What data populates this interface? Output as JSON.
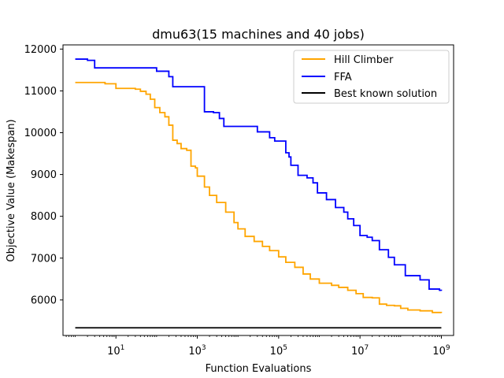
{
  "chart_data": {
    "type": "line",
    "title": "dmu63(15 machines and 40 jobs)",
    "xlabel": "Function Evaluations",
    "ylabel": "Objective Value (Makespan)",
    "xscale": "log",
    "xlim": [
      0.5,
      2000000000
    ],
    "ylim": [
      5150,
      12100
    ],
    "xticks": [
      {
        "value": 10,
        "base": "10",
        "exp": "1"
      },
      {
        "value": 1000,
        "base": "10",
        "exp": "3"
      },
      {
        "value": 100000,
        "base": "10",
        "exp": "5"
      },
      {
        "value": 10000000,
        "base": "10",
        "exp": "7"
      },
      {
        "value": 1000000000,
        "base": "10",
        "exp": "9"
      }
    ],
    "yticks": [
      {
        "value": 6000,
        "label": "6000"
      },
      {
        "value": 7000,
        "label": "7000"
      },
      {
        "value": 8000,
        "label": "8000"
      },
      {
        "value": 9000,
        "label": "9000"
      },
      {
        "value": 10000,
        "label": "10000"
      },
      {
        "value": 11000,
        "label": "11000"
      },
      {
        "value": 12000,
        "label": "12000"
      }
    ],
    "grid": false,
    "legend_position": "top-right",
    "series": [
      {
        "name": "Hill Climber",
        "color": "#ffa500",
        "step": true,
        "points": [
          [
            1,
            11200
          ],
          [
            5.4,
            11170
          ],
          [
            10,
            11060
          ],
          [
            30,
            11040
          ],
          [
            40,
            10990
          ],
          [
            55,
            10920
          ],
          [
            70,
            10800
          ],
          [
            90,
            10600
          ],
          [
            120,
            10480
          ],
          [
            160,
            10380
          ],
          [
            200,
            10180
          ],
          [
            250,
            9820
          ],
          [
            320,
            9740
          ],
          [
            400,
            9620
          ],
          [
            550,
            9580
          ],
          [
            700,
            9200
          ],
          [
            900,
            9160
          ],
          [
            1000,
            8960
          ],
          [
            1500,
            8700
          ],
          [
            2000,
            8500
          ],
          [
            3000,
            8330
          ],
          [
            5000,
            8100
          ],
          [
            8000,
            7850
          ],
          [
            10000,
            7700
          ],
          [
            15000,
            7520
          ],
          [
            25000,
            7400
          ],
          [
            40000,
            7280
          ],
          [
            60000,
            7180
          ],
          [
            100000,
            7030
          ],
          [
            150000,
            6900
          ],
          [
            250000,
            6780
          ],
          [
            400000,
            6620
          ],
          [
            600000,
            6500
          ],
          [
            1000000,
            6400
          ],
          [
            2000000,
            6350
          ],
          [
            3000000,
            6300
          ],
          [
            5000000,
            6230
          ],
          [
            8000000,
            6150
          ],
          [
            12000000,
            6060
          ],
          [
            20000000,
            6050
          ],
          [
            30000000,
            5900
          ],
          [
            45000000,
            5870
          ],
          [
            70000000,
            5860
          ],
          [
            100000000,
            5800
          ],
          [
            150000000,
            5760
          ],
          [
            300000000,
            5740
          ],
          [
            600000000,
            5700
          ],
          [
            1000000000,
            5690
          ]
        ]
      },
      {
        "name": "FFA",
        "color": "#0000ff",
        "step": true,
        "points": [
          [
            1,
            11760
          ],
          [
            2,
            11730
          ],
          [
            3,
            11550
          ],
          [
            100,
            11470
          ],
          [
            200,
            11340
          ],
          [
            250,
            11100
          ],
          [
            700,
            11100
          ],
          [
            1500,
            10500
          ],
          [
            2500,
            10480
          ],
          [
            3500,
            10340
          ],
          [
            4500,
            10150
          ],
          [
            10000,
            10150
          ],
          [
            30000,
            10020
          ],
          [
            60000,
            9880
          ],
          [
            80000,
            9800
          ],
          [
            150000,
            9520
          ],
          [
            180000,
            9420
          ],
          [
            200000,
            9220
          ],
          [
            300000,
            8980
          ],
          [
            500000,
            8920
          ],
          [
            700000,
            8800
          ],
          [
            900000,
            8560
          ],
          [
            1500000,
            8400
          ],
          [
            2500000,
            8210
          ],
          [
            4000000,
            8100
          ],
          [
            5000000,
            7940
          ],
          [
            7000000,
            7780
          ],
          [
            10000000,
            7540
          ],
          [
            15000000,
            7500
          ],
          [
            20000000,
            7420
          ],
          [
            30000000,
            7200
          ],
          [
            50000000,
            7020
          ],
          [
            70000000,
            6840
          ],
          [
            100000000,
            6840
          ],
          [
            130000000,
            6580
          ],
          [
            300000000,
            6480
          ],
          [
            500000000,
            6260
          ],
          [
            900000000,
            6230
          ],
          [
            1000000000,
            6220
          ]
        ]
      },
      {
        "name": "Best known solution",
        "color": "#000000",
        "value": 5333
      }
    ]
  }
}
